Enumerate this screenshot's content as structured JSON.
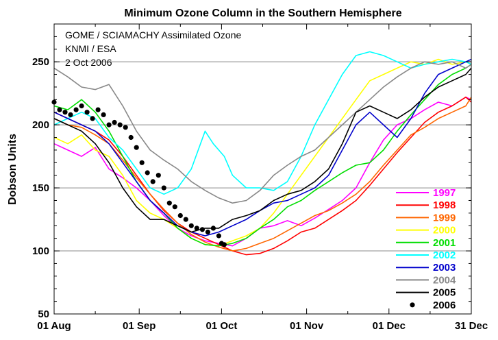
{
  "chart_data": {
    "type": "line",
    "title": "Minimum Ozone Column in the Southern Hemisphere",
    "annotations": [
      "GOME / SCIAMACHY Assimilated Ozone",
      "KNMI / ESA",
      "2 Oct 2006"
    ],
    "xlabel": "",
    "ylabel": "Dobson Units",
    "xlim": [
      0,
      152
    ],
    "ylim": [
      50,
      280
    ],
    "x_ticks": [
      {
        "day": 0,
        "label": "01 Aug"
      },
      {
        "day": 31,
        "label": "01 Sep"
      },
      {
        "day": 61,
        "label": "01 Oct"
      },
      {
        "day": 92,
        "label": "01 Nov"
      },
      {
        "day": 122,
        "label": "01 Dec"
      },
      {
        "day": 152,
        "label": "31 Dec"
      }
    ],
    "y_ticks": [
      50,
      100,
      150,
      200,
      250
    ],
    "grid": "horizontal",
    "legend_position": "right",
    "series": [
      {
        "name": "1997",
        "color": "#ff00ff",
        "style": "line",
        "x": [
          0,
          5,
          10,
          15,
          20,
          25,
          30,
          35,
          40,
          45,
          50,
          55,
          60,
          65,
          70,
          75,
          80,
          85,
          90,
          95,
          100,
          105,
          110,
          115,
          120,
          125,
          130,
          135,
          140,
          145,
          150,
          152
        ],
        "y": [
          185,
          180,
          175,
          182,
          165,
          158,
          150,
          140,
          128,
          118,
          112,
          108,
          106,
          104,
          110,
          118,
          120,
          124,
          120,
          126,
          133,
          140,
          150,
          170,
          188,
          200,
          205,
          212,
          218,
          215,
          222,
          220
        ]
      },
      {
        "name": "1998",
        "color": "#ff0000",
        "style": "line",
        "x": [
          0,
          5,
          10,
          15,
          20,
          25,
          30,
          35,
          40,
          45,
          50,
          55,
          60,
          65,
          70,
          75,
          80,
          85,
          90,
          95,
          100,
          105,
          110,
          115,
          120,
          125,
          130,
          135,
          140,
          145,
          150,
          152
        ],
        "y": [
          210,
          205,
          200,
          195,
          188,
          175,
          160,
          145,
          132,
          122,
          115,
          110,
          105,
          100,
          97,
          98,
          102,
          108,
          115,
          118,
          125,
          132,
          140,
          152,
          165,
          178,
          190,
          202,
          210,
          215,
          222,
          218
        ]
      },
      {
        "name": "1999",
        "color": "#ff6600",
        "style": "line",
        "x": [
          0,
          5,
          10,
          15,
          20,
          25,
          30,
          35,
          40,
          45,
          50,
          55,
          60,
          65,
          70,
          75,
          80,
          85,
          90,
          95,
          100,
          105,
          110,
          115,
          120,
          125,
          130,
          135,
          140,
          145,
          150,
          152
        ],
        "y": [
          205,
          200,
          198,
          192,
          185,
          172,
          158,
          145,
          133,
          122,
          113,
          107,
          103,
          100,
          102,
          106,
          110,
          116,
          122,
          128,
          132,
          138,
          145,
          155,
          168,
          180,
          192,
          198,
          205,
          210,
          215,
          222
        ]
      },
      {
        "name": "2000",
        "color": "#ffff00",
        "style": "line",
        "x": [
          0,
          5,
          10,
          15,
          20,
          25,
          30,
          35,
          40,
          45,
          50,
          55,
          60,
          65,
          70,
          75,
          80,
          85,
          90,
          95,
          100,
          105,
          110,
          115,
          120,
          125,
          130,
          135,
          140,
          145,
          150,
          152
        ],
        "y": [
          190,
          185,
          192,
          180,
          175,
          160,
          140,
          130,
          125,
          118,
          110,
          105,
          104,
          108,
          112,
          118,
          130,
          145,
          160,
          175,
          190,
          205,
          220,
          235,
          240,
          245,
          250,
          248,
          252,
          248,
          250,
          248
        ]
      },
      {
        "name": "2001",
        "color": "#00dd00",
        "style": "line",
        "x": [
          0,
          5,
          10,
          15,
          20,
          25,
          30,
          35,
          40,
          45,
          50,
          55,
          60,
          65,
          70,
          75,
          80,
          85,
          90,
          95,
          100,
          105,
          110,
          115,
          120,
          125,
          130,
          135,
          140,
          145,
          150,
          152
        ],
        "y": [
          215,
          212,
          220,
          210,
          195,
          175,
          155,
          140,
          130,
          118,
          110,
          105,
          104,
          106,
          110,
          118,
          125,
          135,
          140,
          148,
          155,
          162,
          168,
          170,
          180,
          195,
          208,
          220,
          232,
          240,
          245,
          248
        ]
      },
      {
        "name": "2002",
        "color": "#00ffff",
        "style": "line",
        "x": [
          0,
          5,
          10,
          15,
          20,
          25,
          30,
          35,
          40,
          45,
          50,
          55,
          58,
          62,
          65,
          70,
          75,
          80,
          85,
          90,
          95,
          100,
          105,
          110,
          115,
          120,
          125,
          130,
          135,
          140,
          145,
          150,
          152
        ],
        "y": [
          200,
          205,
          210,
          205,
          190,
          180,
          165,
          150,
          145,
          150,
          165,
          195,
          185,
          175,
          160,
          150,
          150,
          148,
          155,
          175,
          200,
          220,
          240,
          255,
          258,
          255,
          250,
          245,
          248,
          250,
          252,
          250,
          248
        ]
      },
      {
        "name": "2003",
        "color": "#0000cc",
        "style": "line",
        "x": [
          0,
          5,
          10,
          15,
          20,
          25,
          30,
          35,
          40,
          45,
          50,
          55,
          60,
          65,
          70,
          75,
          80,
          85,
          90,
          95,
          100,
          105,
          110,
          115,
          120,
          125,
          130,
          135,
          140,
          145,
          150,
          152
        ],
        "y": [
          210,
          205,
          200,
          195,
          185,
          170,
          155,
          140,
          130,
          120,
          115,
          112,
          115,
          120,
          125,
          132,
          138,
          140,
          145,
          150,
          160,
          180,
          200,
          210,
          200,
          190,
          205,
          225,
          240,
          245,
          250,
          252
        ]
      },
      {
        "name": "2004",
        "color": "#888888",
        "style": "line",
        "x": [
          0,
          5,
          10,
          15,
          20,
          25,
          30,
          35,
          40,
          45,
          50,
          55,
          60,
          65,
          70,
          75,
          80,
          85,
          90,
          95,
          100,
          105,
          110,
          115,
          120,
          125,
          130,
          135,
          140,
          145,
          150,
          152
        ],
        "y": [
          245,
          238,
          230,
          228,
          232,
          215,
          195,
          180,
          172,
          165,
          155,
          148,
          142,
          138,
          140,
          148,
          160,
          168,
          175,
          180,
          190,
          200,
          210,
          220,
          230,
          238,
          245,
          250,
          248,
          250,
          245,
          248
        ]
      },
      {
        "name": "2005",
        "color": "#000000",
        "style": "line",
        "x": [
          0,
          5,
          10,
          15,
          20,
          25,
          30,
          35,
          40,
          45,
          50,
          55,
          60,
          65,
          70,
          75,
          80,
          85,
          90,
          95,
          100,
          105,
          110,
          115,
          120,
          125,
          130,
          135,
          140,
          145,
          150,
          152
        ],
        "y": [
          205,
          200,
          195,
          185,
          170,
          150,
          135,
          125,
          125,
          120,
          115,
          118,
          118,
          125,
          128,
          132,
          140,
          145,
          148,
          155,
          165,
          185,
          210,
          215,
          210,
          205,
          212,
          222,
          230,
          235,
          240,
          245
        ]
      },
      {
        "name": "2006",
        "color": "#000000",
        "style": "dots",
        "x": [
          0,
          2,
          4,
          6,
          8,
          10,
          12,
          14,
          16,
          18,
          20,
          22,
          24,
          26,
          28,
          30,
          32,
          34,
          36,
          38,
          40,
          42,
          44,
          46,
          48,
          50,
          52,
          54,
          56,
          58,
          60,
          61,
          62
        ],
        "y": [
          218,
          212,
          210,
          208,
          212,
          215,
          210,
          205,
          212,
          208,
          200,
          202,
          200,
          198,
          190,
          182,
          170,
          162,
          155,
          160,
          150,
          138,
          135,
          128,
          125,
          120,
          118,
          117,
          115,
          118,
          112,
          106,
          105
        ]
      }
    ]
  }
}
